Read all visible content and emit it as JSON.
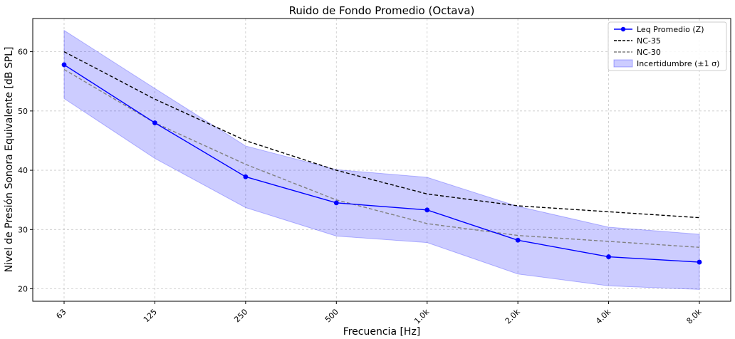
{
  "chart_data": {
    "type": "line",
    "title": "Ruido de Fondo Promedio (Octava)",
    "xlabel": "Frecuencia [Hz]",
    "ylabel": "Nivel de Presión Sonora Equivalente [dB SPL]",
    "categories": [
      "63",
      "125",
      "250",
      "500",
      "1.0k",
      "2.0k",
      "4.0k",
      "8.0k"
    ],
    "yticks": [
      20,
      30,
      40,
      50,
      60
    ],
    "ylim": [
      17.9,
      65.6
    ],
    "grid": true,
    "legend_position": "top-right",
    "series": [
      {
        "name": "Leq Promedio (Z)",
        "style": "solid-markers",
        "color": "#0000ff",
        "values": [
          57.8,
          48.0,
          38.9,
          34.5,
          33.3,
          28.2,
          25.4,
          24.5
        ]
      },
      {
        "name": "NC-35",
        "style": "dashed",
        "color": "#000000",
        "values": [
          60,
          52,
          45,
          40,
          36,
          34,
          33,
          32
        ]
      },
      {
        "name": "NC-30",
        "style": "dashed",
        "color": "#808080",
        "values": [
          57,
          48,
          41,
          35,
          31,
          29,
          28,
          27
        ]
      }
    ],
    "band": {
      "name": "Incertidumbre (±1 σ)",
      "color": "#0000ff",
      "opacity": 0.2,
      "upper": [
        63.6,
        53.8,
        44.1,
        40.1,
        38.8,
        33.9,
        30.4,
        29.2
      ],
      "lower": [
        52.1,
        42.0,
        33.7,
        28.9,
        27.8,
        22.5,
        20.5,
        19.9
      ]
    }
  }
}
